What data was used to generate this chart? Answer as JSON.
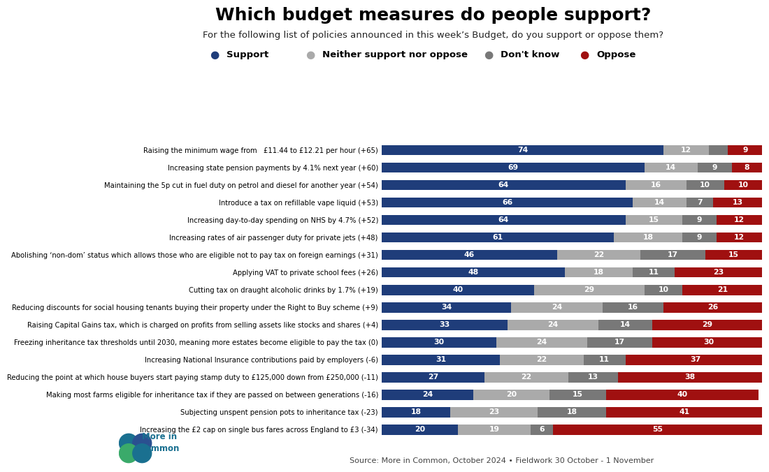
{
  "title": "Which budget measures do people support?",
  "subtitle": "For the following list of policies announced in this week’s Budget, do you support or oppose them?",
  "categories": [
    "Raising the minimum wage from   £11.44 to £12.21 per hour (+65)",
    "Increasing state pension payments by 4.1% next year (+60)",
    "Maintaining the 5p cut in fuel duty on petrol and diesel for another year (+54)",
    "Introduce a tax on refillable vape liquid (+53)",
    "Increasing day-to-day spending on NHS by 4.7% (+52)",
    "Increasing rates of air passenger duty for private jets (+48)",
    "Abolishing ‘non-dom’ status which allows those who are eligible not to pay tax on foreign earnings (+31)",
    "Applying VAT to private school fees (+26)",
    "Cutting tax on draught alcoholic drinks by 1.7% (+19)",
    "Reducing discounts for social housing tenants buying their property under the Right to Buy scheme (+9)",
    "Raising Capital Gains tax, which is charged on profits from selling assets like stocks and shares (+4)",
    "Freezing inheritance tax thresholds until 2030, meaning more estates become eligible to pay the tax (0)",
    "Increasing National Insurance contributions paid by employers (-6)",
    "Reducing the point at which house buyers start paying stamp duty to £125,000 down from £250,000 (-11)",
    "Making most farms eligible for inheritance tax if they are passed on between generations (-16)",
    "Subjecting unspent pension pots to inheritance tax (-23)",
    "Increasing the £2 cap on single bus fares across England to £3 (-34)"
  ],
  "support": [
    74,
    69,
    64,
    66,
    64,
    61,
    46,
    48,
    40,
    34,
    33,
    30,
    31,
    27,
    24,
    18,
    20
  ],
  "neither": [
    12,
    14,
    16,
    14,
    15,
    18,
    22,
    18,
    29,
    24,
    24,
    24,
    22,
    22,
    20,
    23,
    19
  ],
  "dontknow": [
    5,
    9,
    10,
    7,
    9,
    9,
    17,
    11,
    10,
    16,
    14,
    17,
    11,
    13,
    15,
    18,
    6
  ],
  "oppose": [
    9,
    8,
    10,
    13,
    12,
    12,
    15,
    23,
    21,
    26,
    29,
    30,
    37,
    38,
    40,
    41,
    55
  ],
  "color_support": "#1f3d7a",
  "color_neither": "#aaaaaa",
  "color_dontknow": "#787878",
  "color_oppose": "#a01010",
  "background_color": "#ffffff",
  "legend_labels": [
    "Support",
    "Neither support nor oppose",
    "Don't know",
    "Oppose"
  ],
  "source_text": "Source: More in Common, October 2024 • Fieldwork 30 October - 1 November"
}
